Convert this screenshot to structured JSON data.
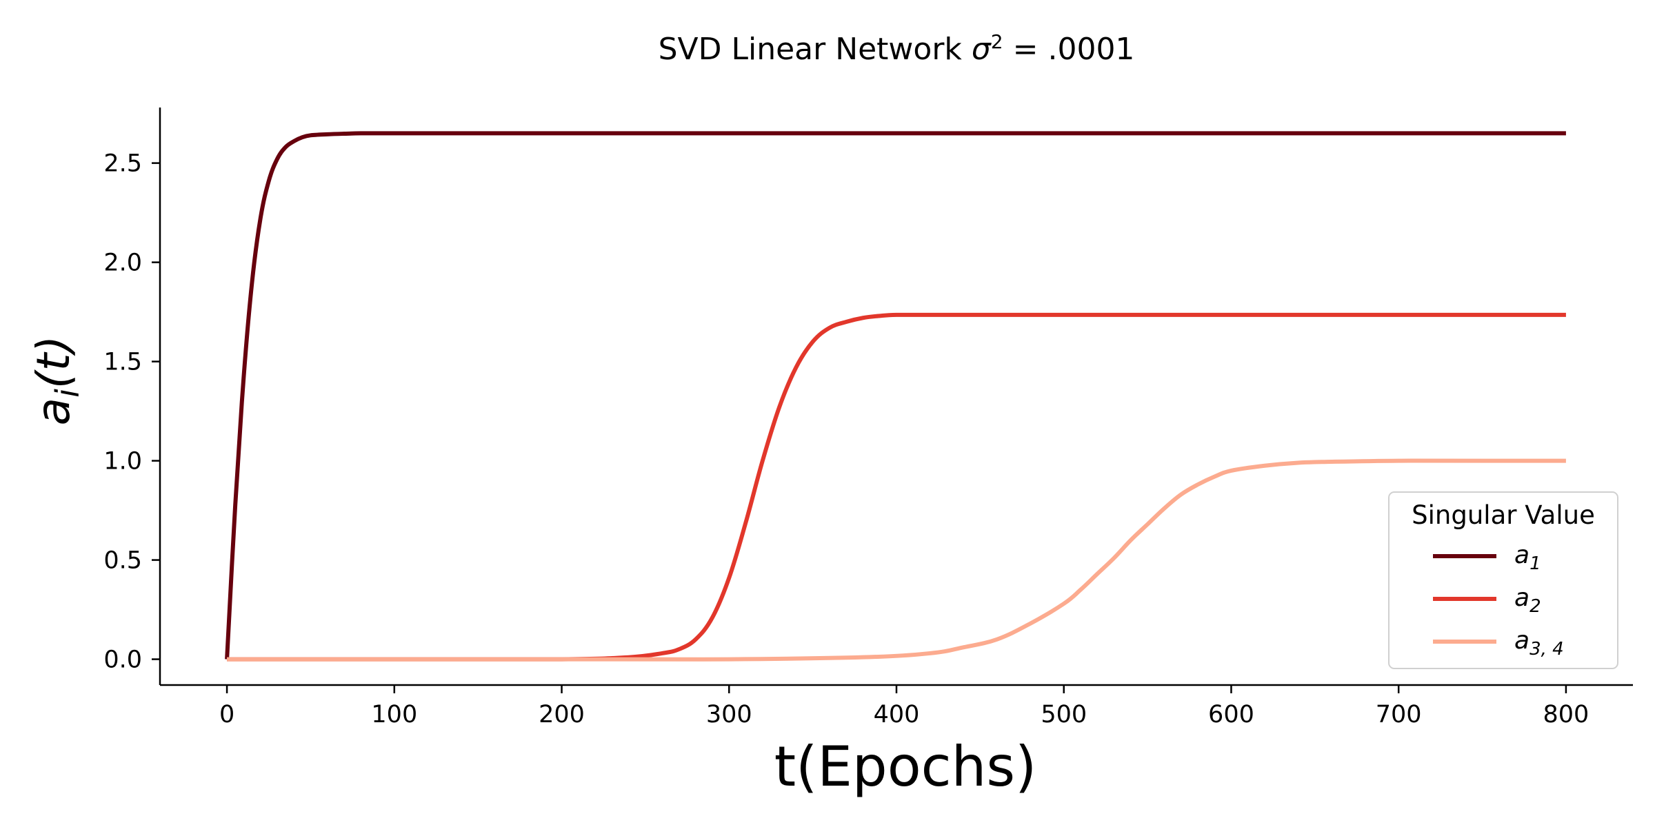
{
  "chart_data": {
    "type": "line",
    "title_main": "SVD Linear Network ",
    "title_sigma": "σ",
    "title_sup": "2",
    "title_tail": " = .0001",
    "xlabel": "t(Epochs)",
    "ylabel_main": "a",
    "ylabel_sub": "i",
    "ylabel_tail": "(t)",
    "xlim": [
      -40,
      840
    ],
    "ylim": [
      -0.13,
      2.78
    ],
    "xticks": [
      0,
      100,
      200,
      300,
      400,
      500,
      600,
      700,
      800
    ],
    "xtick_labels": [
      "0",
      "100",
      "200",
      "300",
      "400",
      "500",
      "600",
      "700",
      "800"
    ],
    "yticks": [
      0.0,
      0.5,
      1.0,
      1.5,
      2.0,
      2.5
    ],
    "ytick_labels": [
      "0.0",
      "0.5",
      "1.0",
      "1.5",
      "2.0",
      "2.5"
    ],
    "grid": false,
    "legend_title": "Singular Value",
    "legend_position": "lower-right",
    "series": [
      {
        "label_main": "a",
        "label_sub": "1",
        "color": "#67000d",
        "x": [
          0,
          5,
          10,
          15,
          20,
          25,
          30,
          35,
          40,
          45,
          50,
          60,
          70,
          80,
          100,
          150,
          200,
          300,
          400,
          500,
          600,
          700,
          800
        ],
        "y": [
          0.0,
          0.78,
          1.42,
          1.9,
          2.22,
          2.41,
          2.52,
          2.58,
          2.61,
          2.63,
          2.64,
          2.645,
          2.648,
          2.65,
          2.65,
          2.65,
          2.65,
          2.65,
          2.65,
          2.65,
          2.65,
          2.65,
          2.65
        ]
      },
      {
        "label_main": "a",
        "label_sub": "2",
        "color": "#e2372b",
        "x": [
          0,
          100,
          200,
          240,
          260,
          270,
          280,
          290,
          300,
          310,
          320,
          330,
          340,
          350,
          360,
          370,
          380,
          390,
          400,
          420,
          450,
          500,
          600,
          700,
          800
        ],
        "y": [
          0.0,
          0.0,
          0.0,
          0.01,
          0.03,
          0.05,
          0.1,
          0.21,
          0.41,
          0.69,
          1.0,
          1.27,
          1.47,
          1.6,
          1.67,
          1.7,
          1.72,
          1.73,
          1.735,
          1.735,
          1.735,
          1.735,
          1.735,
          1.735,
          1.735
        ]
      },
      {
        "label_main": "a",
        "label_sub": "3, 4",
        "color": "#fcab8f",
        "x": [
          0,
          100,
          200,
          300,
          380,
          420,
          440,
          460,
          480,
          500,
          510,
          520,
          530,
          540,
          550,
          560,
          570,
          580,
          590,
          600,
          620,
          640,
          660,
          700,
          750,
          800
        ],
        "y": [
          0.0,
          0.0,
          0.0,
          0.0,
          0.01,
          0.03,
          0.06,
          0.1,
          0.18,
          0.28,
          0.35,
          0.43,
          0.51,
          0.6,
          0.68,
          0.76,
          0.83,
          0.88,
          0.92,
          0.95,
          0.975,
          0.99,
          0.995,
          1.0,
          1.0,
          1.0
        ]
      }
    ]
  }
}
